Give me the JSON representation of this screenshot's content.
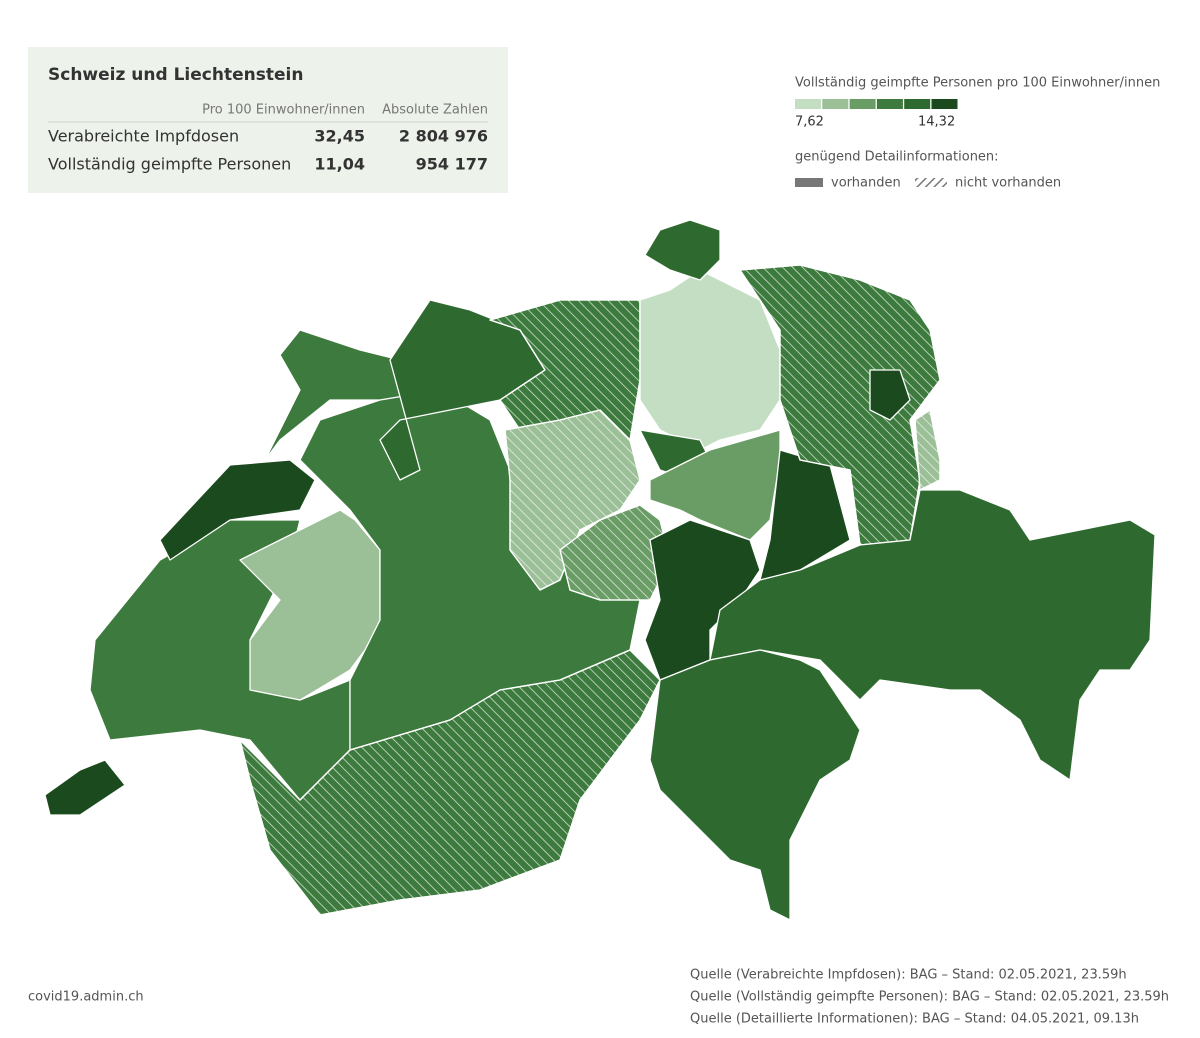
{
  "summary": {
    "title": "Schweiz und Liechtenstein",
    "columns": [
      "Pro 100 Einwohner/innen",
      "Absolute Zahlen"
    ],
    "rows": [
      [
        "Verabreichte Impfdosen",
        "32,45",
        "2 804 976"
      ],
      [
        "Vollständig geimpfte Personen",
        "11,04",
        "954 177"
      ]
    ]
  },
  "legend": {
    "title": "Vollständig geimpfte Personen pro 100 Einwohner/innen",
    "colors": [
      "#c4dec4",
      "#9bbf96",
      "#6a9d66",
      "#3d7a3d",
      "#2e6a2f",
      "#1b4a1e"
    ],
    "min_label": "7,62",
    "max_label": "14,32",
    "detail_title": "genügend Detailinformationen:",
    "detail_items": [
      "vorhanden",
      "nicht vorhanden"
    ]
  },
  "footer": {
    "site": "covid19.admin.ch",
    "sources": [
      "Quelle (Verabreichte Impfdosen): BAG – Stand: 02.05.2021, 23.59h",
      "Quelle (Vollständig geimpfte Personen): BAG – Stand: 02.05.2021, 23.59h",
      "Quelle (Detaillierte Informationen): BAG – Stand: 04.05.2021, 09.13h"
    ]
  }
}
